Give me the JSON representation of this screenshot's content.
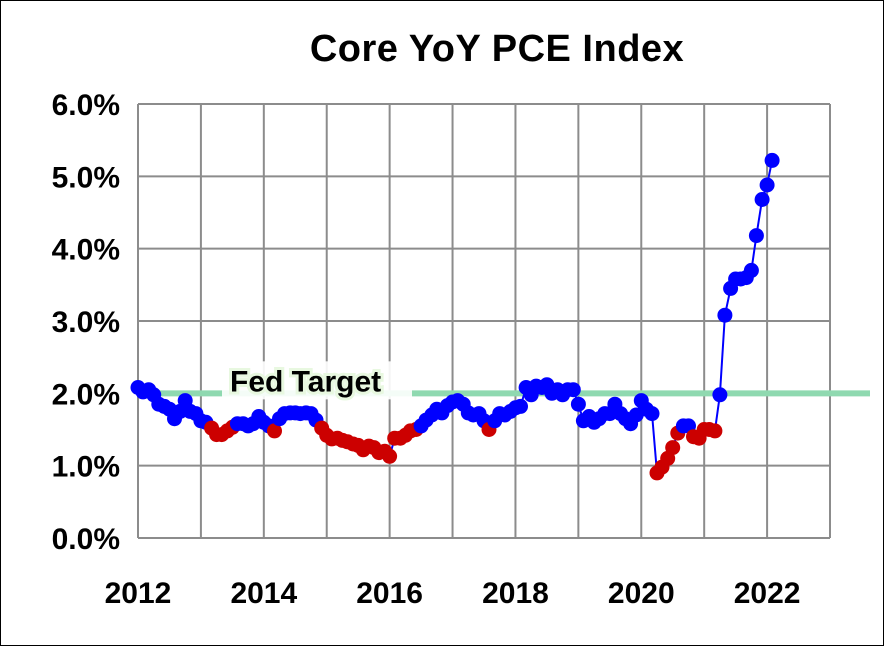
{
  "chart_data": {
    "type": "line",
    "title": "Core YoY PCE Index",
    "xlabel": "",
    "ylabel": "",
    "xlim": [
      2012,
      2023
    ],
    "ylim": [
      0,
      6
    ],
    "x_ticks": [
      "2012",
      "2014",
      "2016",
      "2018",
      "2020",
      "2022"
    ],
    "y_ticks": [
      "0.0%",
      "1.0%",
      "2.0%",
      "3.0%",
      "4.0%",
      "5.0%",
      "6.0%"
    ],
    "grid": true,
    "reference_line": {
      "label": "Fed Target",
      "value": 2.0,
      "color": "#8fd9b0"
    },
    "colors": {
      "above_target": "#0000ff",
      "below_target": "#cc0000",
      "line": "#0000ff"
    },
    "series": [
      {
        "values": [
          [
            2012.0,
            2.08
          ],
          [
            2012.08,
            2.02
          ],
          [
            2012.17,
            2.05
          ],
          [
            2012.25,
            1.98
          ],
          [
            2012.33,
            1.85
          ],
          [
            2012.42,
            1.82
          ],
          [
            2012.5,
            1.78
          ],
          [
            2012.58,
            1.65
          ],
          [
            2012.67,
            1.75
          ],
          [
            2012.75,
            1.9
          ],
          [
            2012.83,
            1.75
          ],
          [
            2012.92,
            1.72
          ],
          [
            2013.0,
            1.62
          ],
          [
            2013.08,
            1.6
          ],
          [
            2013.17,
            1.52
          ],
          [
            2013.25,
            1.43
          ],
          [
            2013.33,
            1.43
          ],
          [
            2013.42,
            1.48
          ],
          [
            2013.5,
            1.53
          ],
          [
            2013.58,
            1.58
          ],
          [
            2013.67,
            1.58
          ],
          [
            2013.75,
            1.55
          ],
          [
            2013.83,
            1.58
          ],
          [
            2013.92,
            1.68
          ],
          [
            2014.0,
            1.6
          ],
          [
            2014.08,
            1.55
          ],
          [
            2014.17,
            1.48
          ],
          [
            2014.25,
            1.65
          ],
          [
            2014.33,
            1.72
          ],
          [
            2014.42,
            1.73
          ],
          [
            2014.5,
            1.73
          ],
          [
            2014.58,
            1.72
          ],
          [
            2014.67,
            1.73
          ],
          [
            2014.75,
            1.72
          ],
          [
            2014.83,
            1.63
          ],
          [
            2014.92,
            1.52
          ],
          [
            2015.0,
            1.42
          ],
          [
            2015.08,
            1.37
          ],
          [
            2015.17,
            1.38
          ],
          [
            2015.25,
            1.35
          ],
          [
            2015.33,
            1.33
          ],
          [
            2015.42,
            1.3
          ],
          [
            2015.5,
            1.28
          ],
          [
            2015.58,
            1.22
          ],
          [
            2015.67,
            1.27
          ],
          [
            2015.75,
            1.25
          ],
          [
            2015.83,
            1.18
          ],
          [
            2015.92,
            1.2
          ],
          [
            2016.0,
            1.13
          ],
          [
            2016.08,
            1.38
          ],
          [
            2016.17,
            1.38
          ],
          [
            2016.25,
            1.42
          ],
          [
            2016.33,
            1.48
          ],
          [
            2016.42,
            1.5
          ],
          [
            2016.5,
            1.55
          ],
          [
            2016.58,
            1.63
          ],
          [
            2016.67,
            1.7
          ],
          [
            2016.75,
            1.78
          ],
          [
            2016.83,
            1.73
          ],
          [
            2016.92,
            1.83
          ],
          [
            2017.0,
            1.88
          ],
          [
            2017.08,
            1.9
          ],
          [
            2017.17,
            1.85
          ],
          [
            2017.25,
            1.73
          ],
          [
            2017.33,
            1.7
          ],
          [
            2017.42,
            1.72
          ],
          [
            2017.5,
            1.62
          ],
          [
            2017.58,
            1.5
          ],
          [
            2017.67,
            1.62
          ],
          [
            2017.75,
            1.72
          ],
          [
            2017.83,
            1.7
          ],
          [
            2017.92,
            1.75
          ],
          [
            2018.0,
            1.8
          ],
          [
            2018.08,
            1.82
          ],
          [
            2018.17,
            2.08
          ],
          [
            2018.25,
            1.98
          ],
          [
            2018.33,
            2.1
          ],
          [
            2018.42,
            2.08
          ],
          [
            2018.5,
            2.12
          ],
          [
            2018.58,
            2.0
          ],
          [
            2018.67,
            2.05
          ],
          [
            2018.75,
            1.98
          ],
          [
            2018.83,
            2.05
          ],
          [
            2018.92,
            2.05
          ],
          [
            2019.0,
            1.85
          ],
          [
            2019.08,
            1.62
          ],
          [
            2019.17,
            1.68
          ],
          [
            2019.25,
            1.6
          ],
          [
            2019.33,
            1.65
          ],
          [
            2019.42,
            1.72
          ],
          [
            2019.5,
            1.72
          ],
          [
            2019.58,
            1.85
          ],
          [
            2019.67,
            1.72
          ],
          [
            2019.75,
            1.65
          ],
          [
            2019.83,
            1.58
          ],
          [
            2019.92,
            1.7
          ],
          [
            2020.0,
            1.9
          ],
          [
            2020.08,
            1.78
          ],
          [
            2020.17,
            1.72
          ],
          [
            2020.25,
            0.9
          ],
          [
            2020.33,
            0.98
          ],
          [
            2020.42,
            1.1
          ],
          [
            2020.5,
            1.25
          ],
          [
            2020.58,
            1.45
          ],
          [
            2020.67,
            1.55
          ],
          [
            2020.75,
            1.55
          ],
          [
            2020.83,
            1.4
          ],
          [
            2020.92,
            1.38
          ],
          [
            2021.0,
            1.5
          ],
          [
            2021.08,
            1.5
          ],
          [
            2021.17,
            1.48
          ],
          [
            2021.25,
            1.98
          ],
          [
            2021.33,
            3.08
          ],
          [
            2021.42,
            3.45
          ],
          [
            2021.5,
            3.58
          ],
          [
            2021.58,
            3.58
          ],
          [
            2021.67,
            3.6
          ],
          [
            2021.75,
            3.7
          ],
          [
            2021.83,
            4.18
          ],
          [
            2021.92,
            4.68
          ],
          [
            2022.0,
            4.88
          ],
          [
            2022.08,
            5.22
          ]
        ]
      }
    ]
  }
}
